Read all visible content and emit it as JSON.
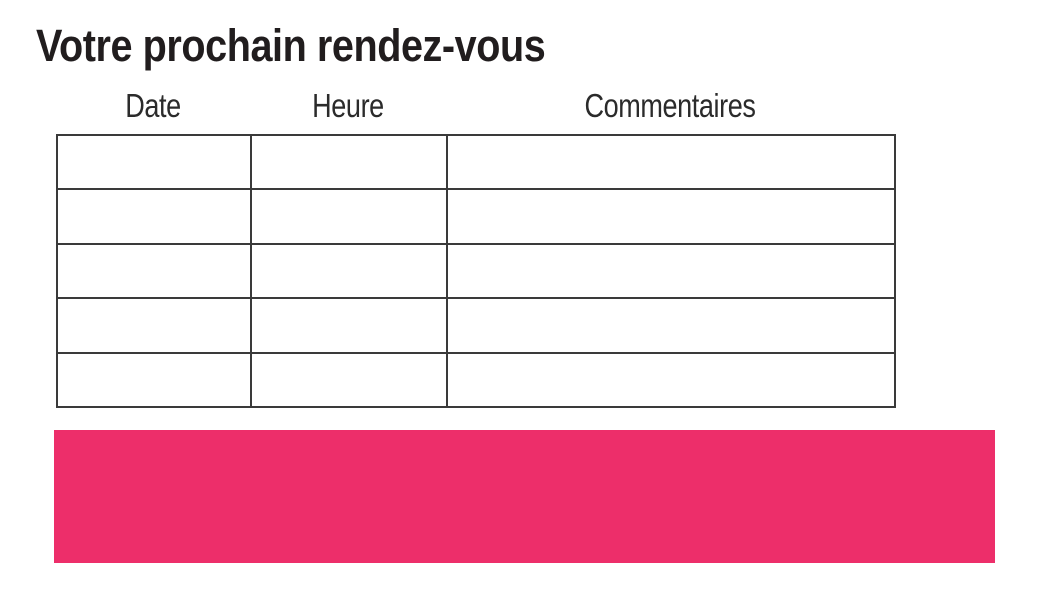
{
  "page": {
    "title": "Votre prochain rendez-vous",
    "background_color": "#ffffff",
    "title_color": "#211d1e"
  },
  "appointment_table": {
    "headers": [
      "Date",
      "Heure",
      "Commentaires"
    ],
    "row_count": 5,
    "rows": [
      [
        "",
        "",
        ""
      ],
      [
        "",
        "",
        ""
      ],
      [
        "",
        "",
        ""
      ],
      [
        "",
        "",
        ""
      ],
      [
        "",
        "",
        ""
      ]
    ],
    "border_color": "#3a3a3a"
  },
  "banner": {
    "text": "",
    "color": "#ed2e6a"
  }
}
